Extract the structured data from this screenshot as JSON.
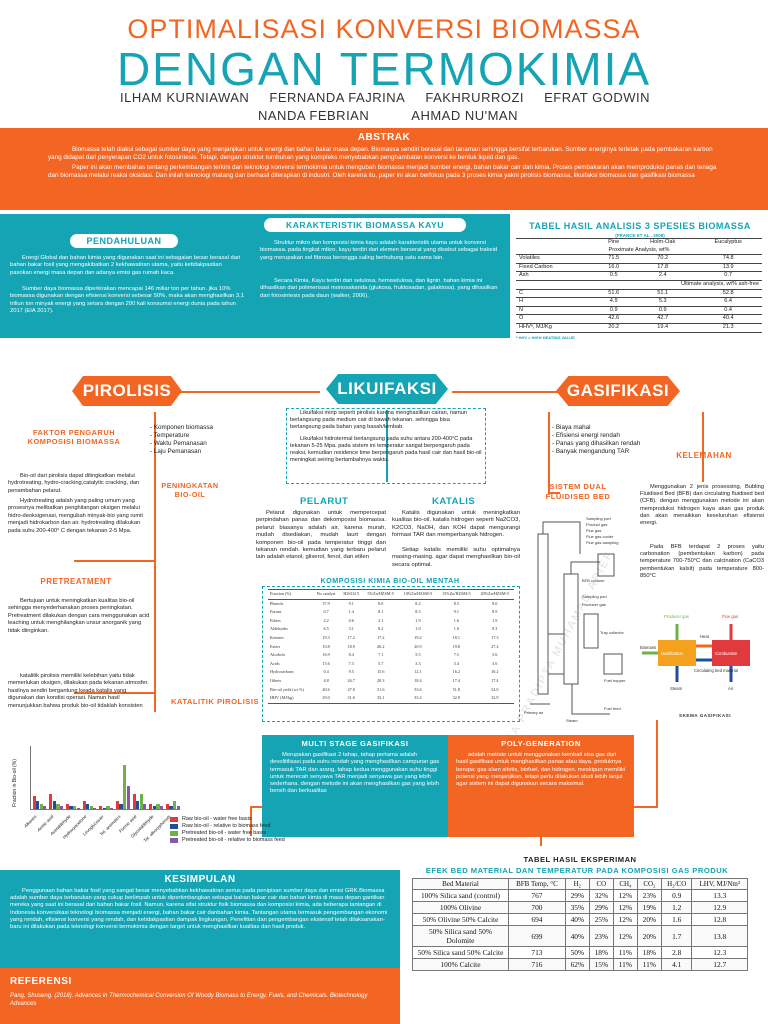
{
  "title": {
    "line1": "OPTIMALISASI KONVERSI BIOMASSA",
    "line2": "DENGAN TERMOKIMIA"
  },
  "authors": {
    "row1": [
      "ILHAM KURNIAWAN",
      "FERNANDA FAJRINA",
      "FAKHRURROZI",
      "EFRAT GODWIN"
    ],
    "row2": [
      "NANDA FEBRIAN",
      "AHMAD NU'MAN"
    ]
  },
  "abstrak": {
    "heading": "ABSTRAK",
    "p1": "Biomassa telah diakui sebagai sumber daya yang menjanjikan untuk energi dan bahan bakar masa depan. Biomassa sendiri berasal dari tanaman sehingga bersifat terbarukan. Sumber energinya terletak pada pembakaran karbon yang didapat dari penyerapan CO2 untuk fotosintesis. Tetapi, dengan struktur tumbuhan yang kompleks menyebabkan penghambatan konversi ke bentuk liquid dan gas.",
    "p2": "Paper ini akan membahas tentang perkembangan terkini dari teknologi konversi termokimia untuk mengubah biomassa menjadi sumber energi, bahan bakar cair dan kimia. Proses pembakaran akan memproduksi panas dan tenaga dari biomassa melalui reaksi oksidasi. Dan inilah teknologi matang dan berhasil diterapkan di industri. Oleh karena itu, paper ini akan berfokus pada 3 proses kimia yakni pirolisis biomassa, likuifaksi biomassa dan gasifikasi biomassa"
  },
  "pendahuluan": {
    "heading": "PENDAHULUAN",
    "p1": "Energi Global dan bahan kimia yang digunakan saat ini sebagaian besar berasal dari bahan bakar fosil yang mengakibatkan 2 kekhawatiran utama, yaitu ketidakpastian pasokan energi masa depan dan adanya emisi gas rumah kaca.",
    "p2": "Sumber daya biomassa diperkirakan mencapai 146 miliar ton per tahun. jika 10% biomassa digunakan dengan efisiensi konversi sebesar 50%, maka akan menghasilkan 3,1 triliun ton minyak energi yang setara dengan 200 kali konsumsi energi dunia pada tahun 2017 (EIA 2017)."
  },
  "karakteristik": {
    "heading": "KARAKTERISTIK BIOMASSA KAYU",
    "p1": "Struktur mikro dan komposisi kimia kayu adalah karakteristik utama untuk konversi biomassa. pada tingkat mikro, kayu terdiri dari elemen berserat yang disebut sebagai trakeid yang merupakan sel fibrosa berongga saling berhubung satu sama lain.",
    "p2": "Secara Kimia, Kayu terdiri dari selulosa, hemiselulosa, dan lignin. bahan kimia ini dihasilkan dari polimerisasi monosakarida (glukosa, fruktosadan, galaktosa). yang dihasilkan dari fotosintesis pada daun (walker, 2006)."
  },
  "prox_table": {
    "heading": "TABEL HASIL ANALISIS 3 SPESIES BIOMASSA",
    "source": "(FRANCE ET AL . 2009)",
    "cols": [
      "Pine",
      "Holm-Oak",
      "Eucalyptus"
    ],
    "sub1": "Proximate Analysis, wt%",
    "rows1": [
      [
        "Volatiles",
        "71.5",
        "70.2",
        "74.8"
      ],
      [
        "Fixed Carbon",
        "16.0",
        "17.8",
        "13.9"
      ],
      [
        "Ash",
        "0.5",
        "2.4",
        "0.7"
      ]
    ],
    "sub2": "Ultimate analysis, wt% ash-free",
    "rows2": [
      [
        "C",
        "51.6",
        "51.1",
        "52.8"
      ],
      [
        "H",
        "4.9",
        "5.3",
        "6.4"
      ],
      [
        "N",
        "0.9",
        "0.9",
        "0.4"
      ],
      [
        "O",
        "42.6",
        "42.7",
        "40.4"
      ],
      [
        "HHVᵃ, MJ/Kg",
        "20.2",
        "19.4",
        "21.3"
      ]
    ],
    "note": "ᵃ HHV = HIGH HEATING VALUE"
  },
  "pirolisis": {
    "heading": "PIROLISIS",
    "faktor": "FAKTOR PENGARUH KOMPOSISI BIOMASSA",
    "faktor_list": [
      "- Komponen biomassa",
      "- Temperature",
      "- Waktu Pemanasan",
      "- Laju Pemanasan"
    ],
    "peningkatan": "PENINGKATAN BIO-OIL",
    "p1": "Bio-oil dari pirolisis dapat ditingkatkan melalui hydrotreating, hydro-cracking,catalytic cracking, dan penambahan pelarut.",
    "p2": "Hydrotreating adalah yang paling umum yang prosesnya melibatkan penghilangan oksigen melalui hidro-deoksigenasi, mengubah minyak-bio yang rumit menjadi hidrokarbon dan air. hydrotreating dilakukan pada suhu 200-400° C dengan tekanan 2-5 Mpa.",
    "pretreatment": "PRETREATMENT",
    "p3": "Bertujuan untuk meningkatkan kualitas bio-oil sehingga menyederhanakan proses peningkatan. Pretreatment dilakukan dengan cara menggunakan acid leaching untuk menghilangkan unsur anorganik yang tidak diinginkan.",
    "katalitik": "KATALITIK PIROLISIS",
    "p4": "katalitik pirolisis memiliki kelebihan yaitu tidak memerlukan oksigen, dilakukan pada tekanan atmosfer. hasilnya sendiri bergantung keada katalis yang digunakan dan kondisi operasi. Namun hasil menunjukkan bahwa produk bio-oil tidaklah konsisten"
  },
  "likuifaksi": {
    "heading": "LIKUIFAKSI",
    "intro1": "Likuifaksi mirip seperti pirolisis karena menghasilkan cairan, namun berlangsung pada medium cair di bawah tekanan. sehingga bisa berlangsung pada bahan yang basah/lembab.",
    "intro2": "Likuifaksi hidrotermal berlangsung pada suhu antara 200-400°C pada tekanan 5-25 Mpa. pada sistem ini temperatur sangat berpengaruh pada reaksi, kemudian residence time berpengaruh pada hasil cair dan hasil bio-oil meningkat seiring bertambahnya waktu.",
    "pelarut": "PELARUT",
    "pelarut_text": "Pelarut digunakan untuk mempercepat perpindahan panas dan dekomposisi biomassa. pelarut biasanya adalah air, karena murah, mudah disediakan, mudah laurt dengan komponen bio-oil pada temperatur tinggi dan tekanan rendah. kemudian yang terbaru pelarut lain adalah etanol, gliserol, fenol, dan etilen",
    "katalis": "KATALIS",
    "katalis_text": "Katalis digunakan untuk meningkatkan kualitas bio-oil. katalis hidrogen seperti Na2CO3, K2CO3, NaOH, dan KOH dapat mengurangi formasi TAR dan memperbanyak hidrogen.",
    "katalis_text2": "Setiap katalis memiliki suhu optimalnya masing-masing. agar dapat menghasilkan bio-oil secara optimal.",
    "komposisi": "KOMPOSISI KIMIA BIO-OIL MENTAH"
  },
  "bio_table": {
    "cols": [
      "Fraction (%)",
      "No catalyst",
      "H2SO4 5",
      "5%Zn/HZSM-5",
      "10%Zn/HZSM-5",
      "15%Zn/HZSM-5",
      "20%Zn/HZSM-5"
    ],
    "rows": [
      [
        "Phenols",
        "37.9",
        "9.1",
        "8.0",
        "8.2",
        "8.5",
        "8.0"
      ],
      [
        "Furans",
        "0.7",
        "1.4",
        "8.1",
        "8.3",
        "9.1",
        "8.9"
      ],
      [
        "Ethers",
        "2.2",
        "0.6",
        "2.1",
        "1.9",
        "1.6",
        "1.9"
      ],
      [
        "Aldehydes",
        "6.5",
        "3.1",
        "8.2",
        "1.0",
        "1.0",
        "8.3"
      ],
      [
        "Ketones",
        "19.3",
        "17.2",
        "17.2",
        "19.2",
        "18.1",
        "17.3"
      ],
      [
        "Esters",
        "10.8",
        "18.9",
        "26.2",
        "20.9",
        "19.8",
        "27.2"
      ],
      [
        "Alcohols",
        "16.9",
        "8.4",
        "7.1",
        "5.5",
        "7.5",
        "5.6"
      ],
      [
        "Acids",
        "15.6",
        "7.3",
        "5.7",
        "3.3",
        "3.4",
        "3.6"
      ],
      [
        "Hydrocarbons",
        "0.4",
        "9.5",
        "15.6",
        "12.1",
        "16.2",
        "16.2"
      ],
      [
        "Others",
        "4.8",
        "26.7",
        "20.3",
        "18.4",
        "17.4",
        "17.4"
      ],
      [
        "Bio-oil yield (wt %)",
        "40.6",
        "47.0",
        "51.6",
        "53.6",
        "51.8",
        "54.0"
      ],
      [
        "HHV (MJ/kg)",
        "29.0",
        "31.6",
        "33.1",
        "33.2",
        "32.9",
        "32.9"
      ]
    ]
  },
  "gasifikasi": {
    "heading": "GASIFIKASI",
    "kelebihan_list": [
      "- Biaya mahal",
      "- Efisiensi energi rendah",
      "- Panas yang dihasilkan rendah",
      "- Banyak mengandung TAR"
    ],
    "kelemahan": "KELEMAHAN",
    "sistem": "SISTEM DUAL FLUIDISED BED",
    "sistem_text": "Menggunakan 2 jenis prosessing, Bubling Fluidised Bed (BFB) dan circulating fluidised bed (CFB). dengan menggunakan metode ini akan memproduksi hidrogen kaya akan gas produk dan akan menaikkan keseluruhan efisiensi energi.",
    "sistem_text2": "Pada BFB terdapat 2 proses yaitu carbonation (pembentukan karbon) pada temperature 700-750°C dan calcination (CaCO3 pembentukan kalsit) pada temperature 800-850°C",
    "gambar_caption": "GAMBAR ILUSTRASI DFB",
    "skema_caption": "SKEMA GASIFIKASI",
    "skema_labels": [
      "Producer gas",
      "Flue gas",
      "Biomass",
      "Gasification",
      "Combustion",
      "Steam",
      "Air",
      "Circulating bed material",
      "Heat"
    ],
    "dfb_labels": [
      "Sampling port",
      "Product gas",
      "Flue gas",
      "Flue gas cooler",
      "Flue gas sampling",
      "BFB cyclone",
      "Sampling port",
      "Producer gas",
      "Tray collector",
      "Fuel hopper",
      "Primary air",
      "Steam",
      "Fuel feed"
    ]
  },
  "multistage": {
    "heading": "MULTI STAGE GASIFIKASI",
    "text": "Merupakan gasifikasi 2 tahap, tahap pertama adalah devolitilisasi pada suhu rendah yang menghasilkan campuran gas termasuk TAR dan arang. tahap kedua menggunakan suhu tinggi untuk merecah senyawa TAR menjadi senyawa gas yang lebih sederhana. dengan metode ini akan menghasilkan gas yang lebih bersih dan berkualitas"
  },
  "polygen": {
    "heading": "POLY-GENERATION",
    "text": "adalah metode untuk menggunakan kembali sisa gas dari hasil gasifikasi untuk menghasilkan panas atau daya. produknya berupa: gas alam sitetis, biofuel, dan hidrogen. meskipun memiliki potensi yang menjanjikan, tetapi perlu dilakukan studi lebih lanjut agar sistem ini dapat digunakan secara maksimal."
  },
  "chart_data": {
    "type": "bar",
    "ylabel": "Fraction in Bio-oil (%)",
    "categories": [
      "Alkanes",
      "Acetic acid",
      "Acetaldehyde",
      "Hydroxyacetone",
      "Levoglucosan",
      "Tot. aromatics",
      "Formic acid",
      "Glycolaldehyde",
      "Tot. alkoxyphenols"
    ],
    "series": [
      {
        "name": "Raw bio-oil - water free basis",
        "color": "#e03a3e",
        "values": [
          5,
          6,
          2,
          3,
          1,
          3,
          6,
          2,
          2
        ]
      },
      {
        "name": "Raw bio-oil - relative to biomass feed",
        "color": "#1f4e9c",
        "values": [
          3,
          3,
          1,
          2,
          0.5,
          2,
          3,
          1,
          1
        ]
      },
      {
        "name": "Pretreated bio-oil - water free basis",
        "color": "#6fb24a",
        "values": [
          2,
          2,
          1,
          1,
          1,
          17,
          6,
          2,
          3
        ]
      },
      {
        "name": "Pretreated bio-oil - relative to biomass feed",
        "color": "#8a56a8",
        "values": [
          1,
          1,
          0.5,
          0.5,
          0.5,
          9,
          2,
          1,
          1
        ]
      }
    ],
    "ylim": [
      0,
      25
    ]
  },
  "exp_table": {
    "heading": "TABEL HASIL EKSPERIMAN",
    "subheading": "EFEK BED MATERIAL DAN TEMPERATUR PADA KOMPOSISI GAS PRODUK",
    "cols": [
      "Bed Material",
      "BFB Temp, °C",
      "H₂",
      "CO",
      "CH₄",
      "CO₂",
      "H₂/CO",
      "LHV, MJ/Nm³"
    ],
    "rows": [
      [
        "100% Silica sand (control)",
        "767",
        "29%",
        "32%",
        "12%",
        "23%",
        "0.9",
        "13.3"
      ],
      [
        "100% Olivine",
        "700",
        "35%",
        "29%",
        "12%",
        "19%",
        "1.2",
        "12.9"
      ],
      [
        "50% Olivine 50% Calcite",
        "694",
        "40%",
        "25%",
        "12%",
        "20%",
        "1.6",
        "12.8"
      ],
      [
        "50% Silica sand 50% Dolomite",
        "699",
        "40%",
        "23%",
        "12%",
        "20%",
        "1.7",
        "13.8"
      ],
      [
        "50% Silica sand 50% Calcite",
        "713",
        "50%",
        "18%",
        "11%",
        "18%",
        "2.8",
        "12.3"
      ],
      [
        "100% Calcite",
        "716",
        "62%",
        "15%",
        "11%",
        "11%",
        "4.1",
        "12.7"
      ]
    ]
  },
  "kesimpulan": {
    "heading": "KESIMPULAN",
    "text": "Penggunaan bahan bakar fosil yang sangat besar menyebabkan kekhawatiran serius pada penipisan sumber daya dan emisi GRK.Biomassa adalah sumber daya terbarukan yang cukup berlimpah untuk dipertimbangkan sebagai bahan bakar cair dan bahan kimia di masa depan gantikan mereka yang saat ini berasal dari bahan bakar fosil. Namun, karena sifat struktur fisik biomassa dan komposisi kimia, ada beberapa tantangan di Indonesia konversikasi teknologi biomassa menjadi energi, bahan bakar cair danbahan kimia. Tantangan utama termasuk pengembangan ekonomi yang rendah, efisiensi konversi yang rendah, dan ketidakpastian dampak lingkungan. Penelitian dan pengembangan ekstensif telah dilaksanakan- baru ini dilakukan pada teknologi konversi termokimia dengan target untuk menghasilkan kualitas dan hasil produk."
  },
  "referensi": {
    "heading": "REFERENSI",
    "text": "Pang, Shuseng. (2018). Advances in Thermochemical Conversion Of Woody Biomass to Energy, Fuels, and Chemicals. Biotechnology Advances"
  },
  "watermark": "ANDHIKA PRADIPTA MUHAMAD ARIEF"
}
